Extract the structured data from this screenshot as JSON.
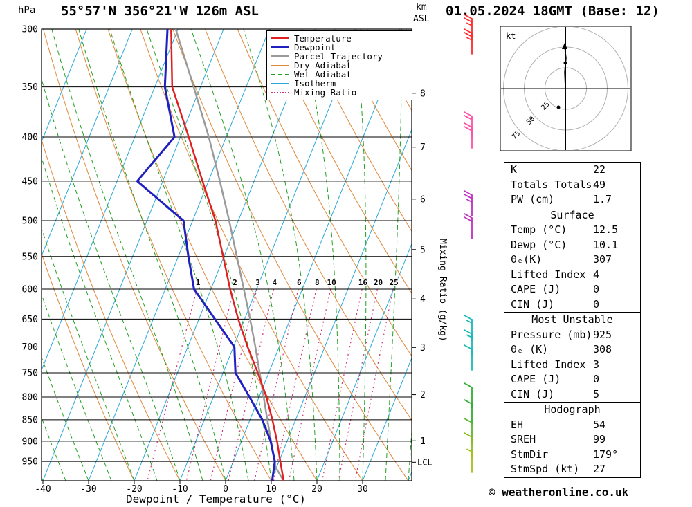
{
  "header": {
    "pressure_unit": "hPa",
    "station_title": "55°57'N 356°21'W 126m ASL",
    "km_unit": "km",
    "asl_unit": "ASL",
    "datetime_title": "01.05.2024 18GMT (Base: 12)"
  },
  "axes": {
    "x_title": "Dewpoint / Temperature (°C)",
    "x_ticks": [
      -40,
      -30,
      -20,
      -10,
      0,
      10,
      20,
      30
    ],
    "pressure_ticks": [
      300,
      350,
      400,
      450,
      500,
      550,
      600,
      650,
      700,
      750,
      800,
      850,
      900,
      950
    ],
    "km_ticks": [
      {
        "label": "8",
        "p": 356
      },
      {
        "label": "7",
        "p": 411
      },
      {
        "label": "6",
        "p": 472
      },
      {
        "label": "5",
        "p": 540
      },
      {
        "label": "4",
        "p": 616
      },
      {
        "label": "3",
        "p": 701
      },
      {
        "label": "2",
        "p": 795
      },
      {
        "label": "1",
        "p": 899
      }
    ],
    "lcl_label": "LCL",
    "lcl_pressure": 952,
    "mixing_axis_label": "Mixing Ratio (g/kg)",
    "mixing_ratio_values": [
      1,
      2,
      3,
      4,
      6,
      8,
      10,
      16,
      20,
      25
    ]
  },
  "legend": {
    "items": [
      {
        "label": "Temperature",
        "color": "#e02020",
        "style": "solid",
        "width": 3
      },
      {
        "label": "Dewpoint",
        "color": "#2020c0",
        "style": "solid",
        "width": 3
      },
      {
        "label": "Parcel Trajectory",
        "color": "#9a9a9a",
        "style": "solid",
        "width": 3
      },
      {
        "label": "Dry Adiabat",
        "color": "#e0883a",
        "style": "solid",
        "width": 2
      },
      {
        "label": "Wet Adiabat",
        "color": "#22a022",
        "style": "dashed",
        "width": 2
      },
      {
        "label": "Isotherm",
        "color": "#2aa8d8",
        "style": "solid",
        "width": 2
      },
      {
        "label": "Mixing Ratio",
        "color": "#cc3377",
        "style": "dotted",
        "width": 2
      }
    ]
  },
  "chart_data": {
    "type": "line",
    "title": "Skew-T log-P sounding 55°57'N 356°21'W 126m ASL, 01.05.2024 18GMT (Base: 12)",
    "x_axis": {
      "label": "Dewpoint / Temperature (°C)",
      "min": -40,
      "max": 38,
      "ticks": [
        -40,
        -30,
        -20,
        -10,
        0,
        10,
        20,
        30
      ]
    },
    "y_axis": {
      "label": "hPa",
      "scale": "log",
      "min": 300,
      "max": 1000,
      "ticks": [
        300,
        350,
        400,
        450,
        500,
        550,
        600,
        650,
        700,
        750,
        800,
        850,
        900,
        950
      ]
    },
    "series": [
      {
        "name": "Temperature",
        "color": "#e02020",
        "units": {
          "x": "°C",
          "y": "hPa"
        },
        "points": [
          [
            1000,
            12.7
          ],
          [
            950,
            10.3
          ],
          [
            900,
            7.8
          ],
          [
            850,
            4.9
          ],
          [
            800,
            1.6
          ],
          [
            750,
            -2.4
          ],
          [
            700,
            -6.9
          ],
          [
            650,
            -11.4
          ],
          [
            600,
            -15.8
          ],
          [
            550,
            -20.2
          ],
          [
            500,
            -25.0
          ],
          [
            450,
            -31.3
          ],
          [
            400,
            -38.2
          ],
          [
            350,
            -46.2
          ],
          [
            300,
            -51.5
          ]
        ]
      },
      {
        "name": "Dewpoint",
        "color": "#2020c0",
        "units": {
          "x": "°C",
          "y": "hPa"
        },
        "points": [
          [
            1000,
            10.2
          ],
          [
            950,
            9.1
          ],
          [
            900,
            6.4
          ],
          [
            850,
            2.7
          ],
          [
            800,
            -2.1
          ],
          [
            750,
            -7.3
          ],
          [
            700,
            -9.8
          ],
          [
            650,
            -16.5
          ],
          [
            600,
            -23.7
          ],
          [
            550,
            -27.8
          ],
          [
            500,
            -32.0
          ],
          [
            450,
            -45.6
          ],
          [
            400,
            -41.3
          ],
          [
            350,
            -47.8
          ],
          [
            300,
            -52.3
          ]
        ]
      },
      {
        "name": "Parcel Trajectory",
        "color": "#9a9a9a",
        "units": {
          "x": "°C",
          "y": "hPa"
        },
        "points": [
          [
            1000,
            12.7
          ],
          [
            965,
            9.8
          ],
          [
            900,
            6.5
          ],
          [
            850,
            3.8
          ],
          [
            800,
            1.0
          ],
          [
            750,
            -2.0
          ],
          [
            700,
            -5.2
          ],
          [
            650,
            -8.8
          ],
          [
            600,
            -12.8
          ],
          [
            550,
            -17.2
          ],
          [
            500,
            -22.0
          ],
          [
            450,
            -27.5
          ],
          [
            400,
            -33.8
          ],
          [
            350,
            -41.5
          ],
          [
            300,
            -50.5
          ]
        ]
      }
    ],
    "background_lines": {
      "isotherm": {
        "color": "#2aa8d8",
        "step_c": 10
      },
      "dry_adiabat": {
        "color": "#e0883a",
        "step_c": 10
      },
      "wet_adiabat": {
        "color": "#22a022",
        "step_c": 5
      },
      "mixing_ratio": {
        "color": "#cc3377",
        "values": [
          1,
          2,
          3,
          4,
          6,
          8,
          10,
          16,
          20,
          25
        ]
      }
    }
  },
  "wind_barbs": [
    {
      "y": 57,
      "color": "#ff2a2a",
      "speed_kt": 25
    },
    {
      "y": 78,
      "color": "#ff2a2a",
      "speed_kt": 25
    },
    {
      "y": 198,
      "color": "#ff4fa7",
      "speed_kt": 20
    },
    {
      "y": 214,
      "color": "#ff4fa7",
      "speed_kt": 20
    },
    {
      "y": 312,
      "color": "#c030c0",
      "speed_kt": 25
    },
    {
      "y": 345,
      "color": "#c030c0",
      "speed_kt": 20
    },
    {
      "y": 492,
      "color": "#18b8b8",
      "speed_kt": 15
    },
    {
      "y": 513,
      "color": "#18b8b8",
      "speed_kt": 15
    },
    {
      "y": 535,
      "color": "#18b8b8",
      "speed_kt": 10
    },
    {
      "y": 590,
      "color": "#2fae2f",
      "speed_kt": 10
    },
    {
      "y": 614,
      "color": "#2fae2f",
      "speed_kt": 10
    },
    {
      "y": 641,
      "color": "#5cb32d",
      "speed_kt": 10
    },
    {
      "y": 662,
      "color": "#86bb1f",
      "speed_kt": 10
    },
    {
      "y": 683,
      "color": "#a3c21a",
      "speed_kt": 5
    }
  ],
  "hodograph": {
    "kt_label": "kt",
    "rings": [
      {
        "label": "25",
        "r": 30
      },
      {
        "label": "50",
        "r": 60
      },
      {
        "label": "75",
        "r": 90
      }
    ],
    "trace": [
      [
        817,
        128
      ],
      [
        816,
        104
      ],
      [
        818,
        84
      ],
      [
        816,
        68
      ]
    ],
    "arrow_tip": [
      816,
      62
    ],
    "dots": [
      [
        817,
        91
      ],
      [
        807,
        155
      ]
    ]
  },
  "table": {
    "sections": [
      {
        "rows": [
          [
            "K",
            "22"
          ],
          [
            "Totals Totals",
            "49"
          ],
          [
            "PW (cm)",
            "1.7"
          ]
        ]
      },
      {
        "header": "Surface",
        "rows": [
          [
            "Temp (°C)",
            "12.5"
          ],
          [
            "Dewp (°C)",
            "10.1"
          ],
          [
            "θₑ(K)",
            "307"
          ],
          [
            "Lifted Index",
            "4"
          ],
          [
            "CAPE (J)",
            "0"
          ],
          [
            "CIN (J)",
            "0"
          ]
        ]
      },
      {
        "header": "Most Unstable",
        "rows": [
          [
            "Pressure (mb)",
            "925"
          ],
          [
            "θₑ (K)",
            "308"
          ],
          [
            "Lifted Index",
            "3"
          ],
          [
            "CAPE (J)",
            "0"
          ],
          [
            "CIN (J)",
            "5"
          ]
        ]
      },
      {
        "header": "Hodograph",
        "rows": [
          [
            "EH",
            "54"
          ],
          [
            "SREH",
            "99"
          ],
          [
            "StmDir",
            "179°"
          ],
          [
            "StmSpd (kt)",
            "27"
          ]
        ]
      }
    ]
  },
  "footer": {
    "copyright": "© weatheronline.co.uk"
  }
}
